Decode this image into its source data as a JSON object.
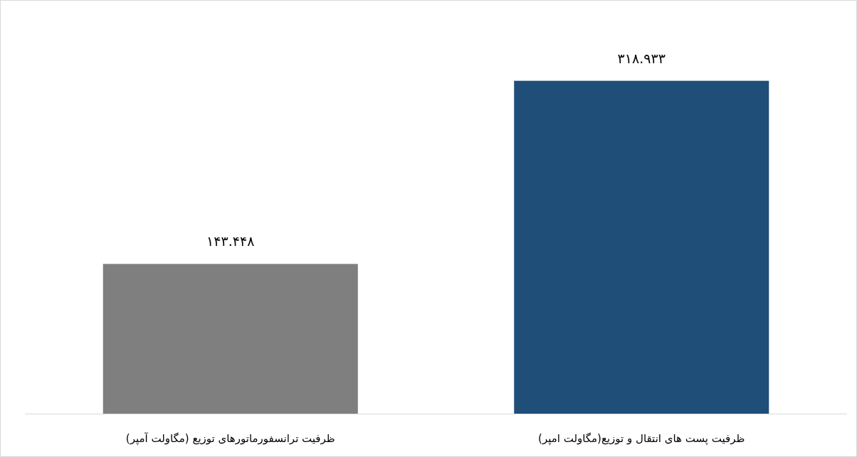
{
  "chart_data": {
    "type": "bar",
    "categories": [
      "ظرفیت ترانسفورماتورهای توزیع (مگاولت آمپر)",
      "ظرفیت پست های انتقال و توزیع(مگاولت امپر)"
    ],
    "values": [
      143.448,
      318.933
    ],
    "colors": [
      "#7f7f7f",
      "#1f4e79"
    ],
    "value_labels": [
      "۱۴۳.۴۴۸",
      "۳۱۸.۹۳۳"
    ]
  }
}
